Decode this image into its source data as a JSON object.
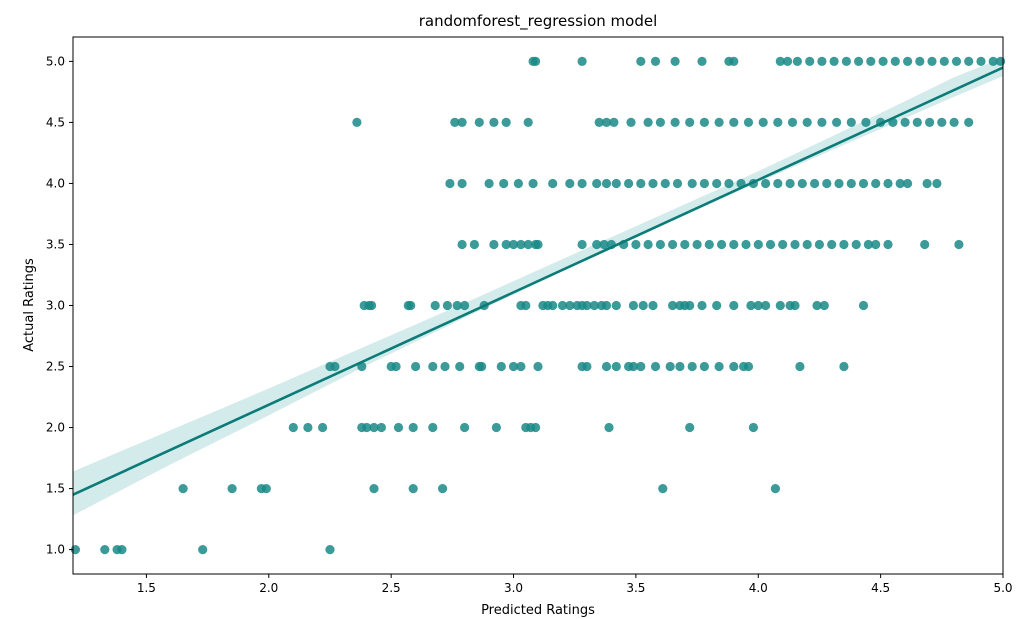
{
  "chart_data": {
    "type": "scatter",
    "title": "randomforest_regression model",
    "xlabel": "Predicted Ratings",
    "ylabel": "Actual Ratings",
    "xlim": [
      1.2,
      5.0
    ],
    "ylim": [
      0.8,
      5.2
    ],
    "xticks": [
      "1.5",
      "2.0",
      "2.5",
      "3.0",
      "3.5",
      "4.0",
      "4.5",
      "5.0"
    ],
    "yticks": [
      "1.0",
      "1.5",
      "2.0",
      "2.5",
      "3.0",
      "3.5",
      "4.0",
      "4.5",
      "5.0"
    ],
    "grid": false,
    "legend": "none",
    "point_color": "#1a8a87",
    "line_color": "#0b7b78",
    "band_color": "#b7dede",
    "regression_line": {
      "x": [
        1.2,
        5.0
      ],
      "y": [
        1.45,
        4.95
      ]
    },
    "confidence_band": {
      "x": [
        1.2,
        1.6,
        2.0,
        2.4,
        2.8,
        3.2,
        3.6,
        4.0,
        4.4,
        4.8,
        5.0
      ],
      "lower": [
        1.28,
        1.7,
        2.1,
        2.51,
        2.9,
        3.28,
        3.65,
        4.01,
        4.36,
        4.71,
        4.88
      ],
      "upper": [
        1.64,
        1.98,
        2.32,
        2.67,
        3.02,
        3.38,
        3.74,
        4.1,
        4.48,
        4.87,
        5.03
      ]
    },
    "series": [
      {
        "x": [
          1.21,
          1.33,
          1.38,
          1.4,
          1.73,
          2.25
        ],
        "y": [
          1.0,
          1.0,
          1.0,
          1.0,
          1.0,
          1.0
        ]
      },
      {
        "x": [
          1.65,
          1.85,
          1.97,
          1.99,
          2.43,
          2.59,
          2.71,
          3.61,
          4.07
        ],
        "y": [
          1.5,
          1.5,
          1.5,
          1.5,
          1.5,
          1.5,
          1.5,
          1.5,
          1.5
        ]
      },
      {
        "x": [
          2.1,
          2.16,
          2.22,
          2.38,
          2.4,
          2.43,
          2.46,
          2.53,
          2.59,
          2.67,
          2.8,
          2.93,
          3.05,
          3.07,
          3.09,
          3.39,
          3.72,
          3.98
        ],
        "y": [
          2.0,
          2.0,
          2.0,
          2.0,
          2.0,
          2.0,
          2.0,
          2.0,
          2.0,
          2.0,
          2.0,
          2.0,
          2.0,
          2.0,
          2.0,
          2.0,
          2.0,
          2.0
        ]
      },
      {
        "x": [
          2.25,
          2.27,
          2.38,
          2.5,
          2.52,
          2.6,
          2.67,
          2.72,
          2.78,
          2.86,
          2.87,
          2.95,
          3.0,
          3.03,
          3.1,
          3.28,
          3.3,
          3.38,
          3.42,
          3.47,
          3.49,
          3.52,
          3.58,
          3.64,
          3.68,
          3.73,
          3.78,
          3.84,
          3.9,
          3.94,
          3.96,
          4.17,
          4.35
        ],
        "y": [
          2.5,
          2.5,
          2.5,
          2.5,
          2.5,
          2.5,
          2.5,
          2.5,
          2.5,
          2.5,
          2.5,
          2.5,
          2.5,
          2.5,
          2.5,
          2.5,
          2.5,
          2.5,
          2.5,
          2.5,
          2.5,
          2.5,
          2.5,
          2.5,
          2.5,
          2.5,
          2.5,
          2.5,
          2.5,
          2.5,
          2.5,
          2.5,
          2.5
        ]
      },
      {
        "x": [
          2.39,
          2.41,
          2.42,
          2.57,
          2.58,
          2.68,
          2.73,
          2.77,
          2.8,
          2.88,
          3.03,
          3.05,
          3.12,
          3.14,
          3.16,
          3.2,
          3.23,
          3.26,
          3.28,
          3.3,
          3.33,
          3.36,
          3.38,
          3.42,
          3.49,
          3.53,
          3.57,
          3.65,
          3.68,
          3.7,
          3.72,
          3.77,
          3.83,
          3.9,
          3.97,
          4.0,
          4.03,
          4.09,
          4.13,
          4.15,
          4.24,
          4.27,
          4.43
        ],
        "y": [
          3.0,
          3.0,
          3.0,
          3.0,
          3.0,
          3.0,
          3.0,
          3.0,
          3.0,
          3.0,
          3.0,
          3.0,
          3.0,
          3.0,
          3.0,
          3.0,
          3.0,
          3.0,
          3.0,
          3.0,
          3.0,
          3.0,
          3.0,
          3.0,
          3.0,
          3.0,
          3.0,
          3.0,
          3.0,
          3.0,
          3.0,
          3.0,
          3.0,
          3.0,
          3.0,
          3.0,
          3.0,
          3.0,
          3.0,
          3.0,
          3.0,
          3.0,
          3.0
        ]
      },
      {
        "x": [
          2.79,
          2.84,
          2.92,
          2.97,
          3.0,
          3.03,
          3.06,
          3.09,
          3.1,
          3.28,
          3.34,
          3.37,
          3.4,
          3.45,
          3.5,
          3.55,
          3.6,
          3.65,
          3.7,
          3.75,
          3.8,
          3.85,
          3.9,
          3.95,
          4.0,
          4.05,
          4.1,
          4.15,
          4.2,
          4.25,
          4.3,
          4.35,
          4.4,
          4.45,
          4.48,
          4.53,
          4.68,
          4.82
        ],
        "y": [
          3.5,
          3.5,
          3.5,
          3.5,
          3.5,
          3.5,
          3.5,
          3.5,
          3.5,
          3.5,
          3.5,
          3.5,
          3.5,
          3.5,
          3.5,
          3.5,
          3.5,
          3.5,
          3.5,
          3.5,
          3.5,
          3.5,
          3.5,
          3.5,
          3.5,
          3.5,
          3.5,
          3.5,
          3.5,
          3.5,
          3.5,
          3.5,
          3.5,
          3.5,
          3.5,
          3.5,
          3.5,
          3.5
        ]
      },
      {
        "x": [
          2.74,
          2.79,
          2.9,
          2.96,
          3.02,
          3.08,
          3.16,
          3.23,
          3.28,
          3.34,
          3.38,
          3.42,
          3.47,
          3.52,
          3.57,
          3.62,
          3.67,
          3.73,
          3.78,
          3.83,
          3.88,
          3.93,
          3.98,
          4.03,
          4.08,
          4.13,
          4.18,
          4.23,
          4.28,
          4.33,
          4.38,
          4.43,
          4.48,
          4.53,
          4.58,
          4.61,
          4.69,
          4.73
        ],
        "y": [
          4.0,
          4.0,
          4.0,
          4.0,
          4.0,
          4.0,
          4.0,
          4.0,
          4.0,
          4.0,
          4.0,
          4.0,
          4.0,
          4.0,
          4.0,
          4.0,
          4.0,
          4.0,
          4.0,
          4.0,
          4.0,
          4.0,
          4.0,
          4.0,
          4.0,
          4.0,
          4.0,
          4.0,
          4.0,
          4.0,
          4.0,
          4.0,
          4.0,
          4.0,
          4.0,
          4.0,
          4.0,
          4.0
        ]
      },
      {
        "x": [
          2.36,
          2.76,
          2.79,
          2.86,
          2.92,
          2.97,
          3.06,
          3.35,
          3.38,
          3.41,
          3.48,
          3.55,
          3.6,
          3.66,
          3.72,
          3.78,
          3.84,
          3.9,
          3.96,
          4.02,
          4.08,
          4.14,
          4.2,
          4.26,
          4.32,
          4.38,
          4.44,
          4.5,
          4.55,
          4.6,
          4.65,
          4.7,
          4.75,
          4.8,
          4.86
        ],
        "y": [
          4.5,
          4.5,
          4.5,
          4.5,
          4.5,
          4.5,
          4.5,
          4.5,
          4.5,
          4.5,
          4.5,
          4.5,
          4.5,
          4.5,
          4.5,
          4.5,
          4.5,
          4.5,
          4.5,
          4.5,
          4.5,
          4.5,
          4.5,
          4.5,
          4.5,
          4.5,
          4.5,
          4.5,
          4.5,
          4.5,
          4.5,
          4.5,
          4.5,
          4.5,
          4.5
        ]
      },
      {
        "x": [
          3.08,
          3.09,
          3.28,
          3.52,
          3.58,
          3.66,
          3.77,
          3.88,
          3.9,
          4.09,
          4.12,
          4.16,
          4.21,
          4.26,
          4.31,
          4.36,
          4.41,
          4.46,
          4.51,
          4.56,
          4.61,
          4.66,
          4.71,
          4.76,
          4.81,
          4.86,
          4.91,
          4.96,
          4.99
        ],
        "y": [
          5.0,
          5.0,
          5.0,
          5.0,
          5.0,
          5.0,
          5.0,
          5.0,
          5.0,
          5.0,
          5.0,
          5.0,
          5.0,
          5.0,
          5.0,
          5.0,
          5.0,
          5.0,
          5.0,
          5.0,
          5.0,
          5.0,
          5.0,
          5.0,
          5.0,
          5.0,
          5.0,
          5.0,
          5.0
        ]
      }
    ]
  }
}
